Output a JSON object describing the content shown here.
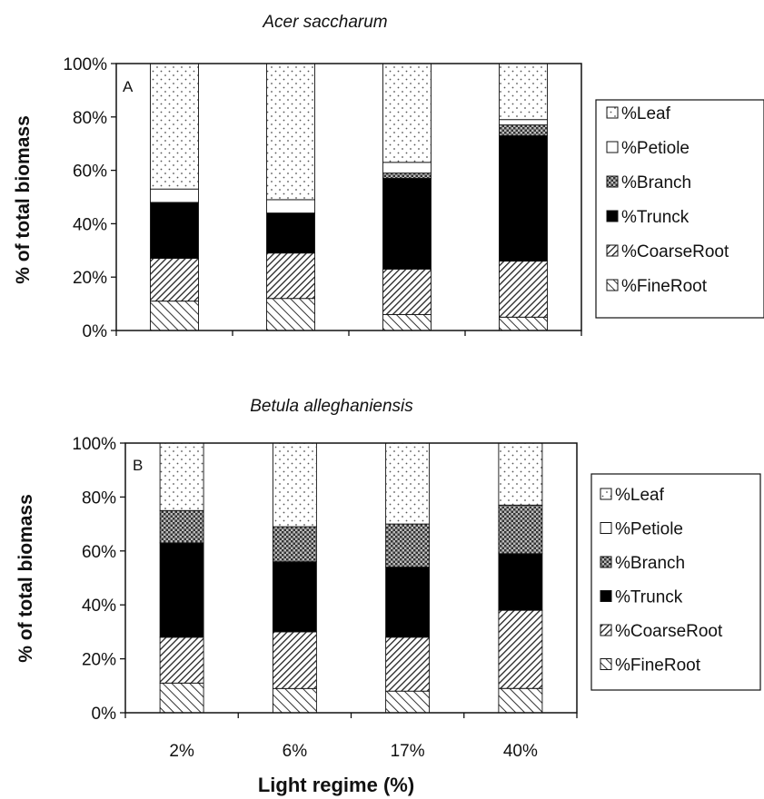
{
  "chart_data": [
    {
      "type": "bar",
      "stacked": true,
      "title": "Acer saccharum",
      "panel_label": "A",
      "ylabel": "% of total biomass",
      "ylim": [
        0,
        100
      ],
      "yticks": [
        "0%",
        "20%",
        "40%",
        "60%",
        "80%",
        "100%"
      ],
      "categories": [
        "2%",
        "6%",
        "17%",
        "40%"
      ],
      "legend_position": "right",
      "series": [
        {
          "name": "%FineRoot",
          "values": [
            11,
            12,
            6,
            5
          ]
        },
        {
          "name": "%CoarseRoot",
          "values": [
            16,
            17,
            17,
            21
          ]
        },
        {
          "name": "%Trunck",
          "values": [
            21,
            15,
            34,
            47
          ]
        },
        {
          "name": "%Branch",
          "values": [
            0,
            0,
            2,
            4
          ]
        },
        {
          "name": "%Petiole",
          "values": [
            5,
            5,
            4,
            2
          ]
        },
        {
          "name": "%Leaf",
          "values": [
            47,
            51,
            37,
            21
          ]
        }
      ]
    },
    {
      "type": "bar",
      "stacked": true,
      "title": "Betula alleghaniensis",
      "panel_label": "B",
      "ylabel": "% of total biomass",
      "xlabel": "Light regime (%)",
      "ylim": [
        0,
        100
      ],
      "yticks": [
        "0%",
        "20%",
        "40%",
        "60%",
        "80%",
        "100%"
      ],
      "categories": [
        "2%",
        "6%",
        "17%",
        "40%"
      ],
      "legend_position": "right",
      "series": [
        {
          "name": "%FineRoot",
          "values": [
            11,
            9,
            8,
            9
          ]
        },
        {
          "name": "%CoarseRoot",
          "values": [
            17,
            21,
            20,
            29
          ]
        },
        {
          "name": "%Trunck",
          "values": [
            35,
            26,
            26,
            21
          ]
        },
        {
          "name": "%Branch",
          "values": [
            12,
            13,
            16,
            18
          ]
        },
        {
          "name": "%Petiole",
          "values": [
            0,
            0,
            0,
            0
          ]
        },
        {
          "name": "%Leaf",
          "values": [
            25,
            31,
            30,
            23
          ]
        }
      ]
    }
  ],
  "colors": {
    "axis": "#111111",
    "trunk_fill": "#000000",
    "background": "#ffffff"
  }
}
